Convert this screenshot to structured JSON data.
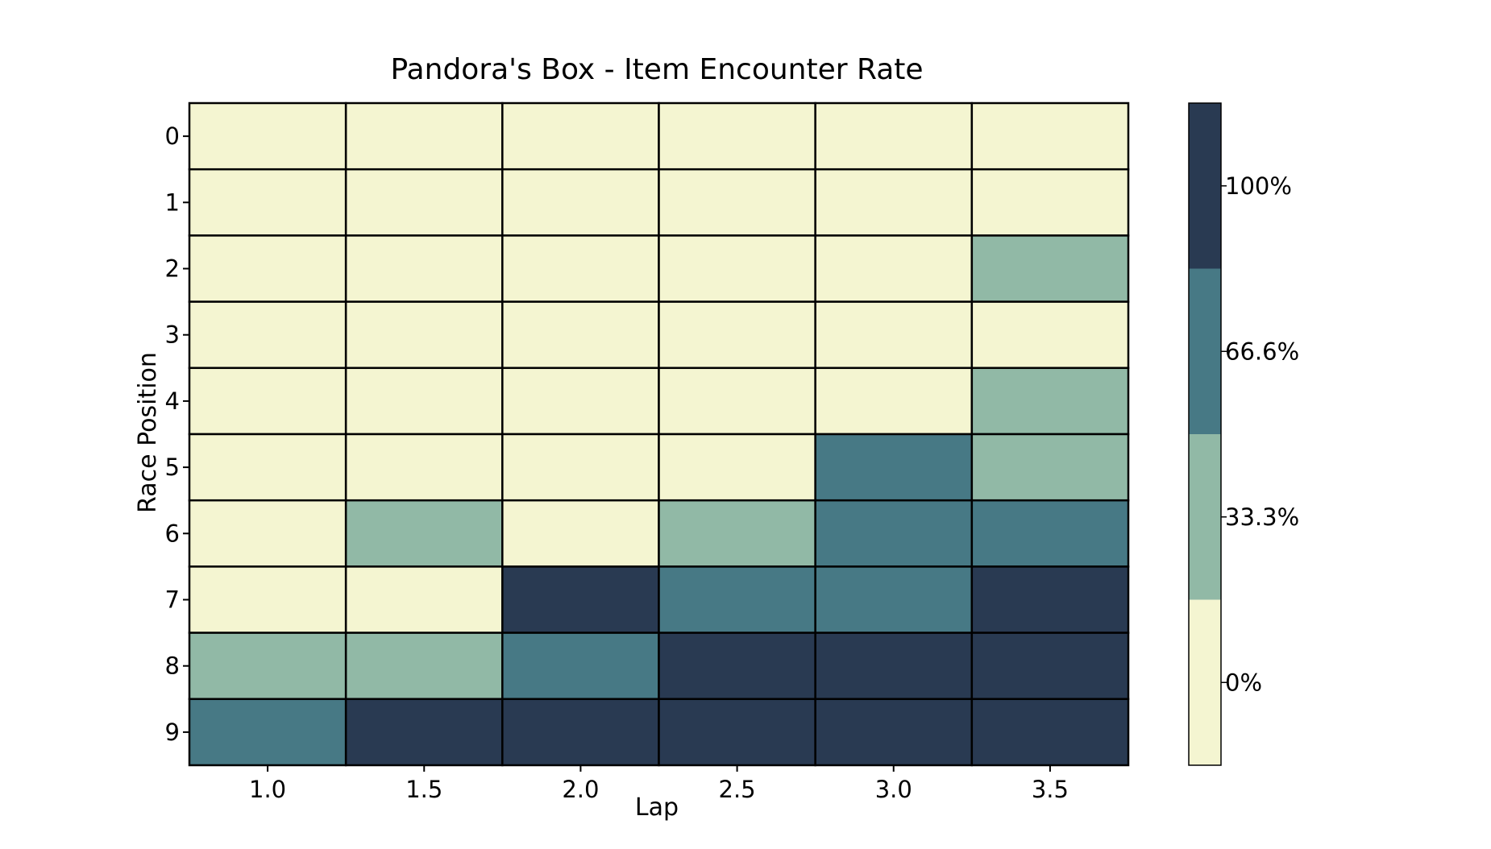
{
  "chart_data": {
    "type": "heatmap",
    "title": "Pandora's Box - Item Encounter Rate",
    "xlabel": "Lap",
    "ylabel": "Race Position",
    "x": [
      "1.0",
      "1.5",
      "2.0",
      "2.5",
      "3.0",
      "3.5"
    ],
    "y": [
      "0",
      "1",
      "2",
      "3",
      "4",
      "5",
      "6",
      "7",
      "8",
      "9"
    ],
    "values": [
      [
        0,
        0,
        0,
        0,
        0,
        0
      ],
      [
        0,
        0,
        0,
        0,
        0,
        0
      ],
      [
        0,
        0,
        0,
        0,
        0,
        33.3
      ],
      [
        0,
        0,
        0,
        0,
        0,
        0
      ],
      [
        0,
        0,
        0,
        0,
        0,
        33.3
      ],
      [
        0,
        0,
        0,
        0,
        66.6,
        33.3
      ],
      [
        0,
        33.3,
        0,
        33.3,
        66.6,
        66.6
      ],
      [
        0,
        0,
        100,
        66.6,
        66.6,
        100
      ],
      [
        33.3,
        33.3,
        66.6,
        100,
        100,
        100
      ],
      [
        66.6,
        100,
        100,
        100,
        100,
        100
      ]
    ],
    "colorbar": {
      "levels": [
        0,
        33.3,
        66.6,
        100
      ],
      "labels": [
        "0%",
        "33.3%",
        "66.6%",
        "100%"
      ],
      "colors": [
        "#f4f5d1",
        "#91b9a6",
        "#477985",
        "#293a52"
      ]
    },
    "grid": false
  }
}
